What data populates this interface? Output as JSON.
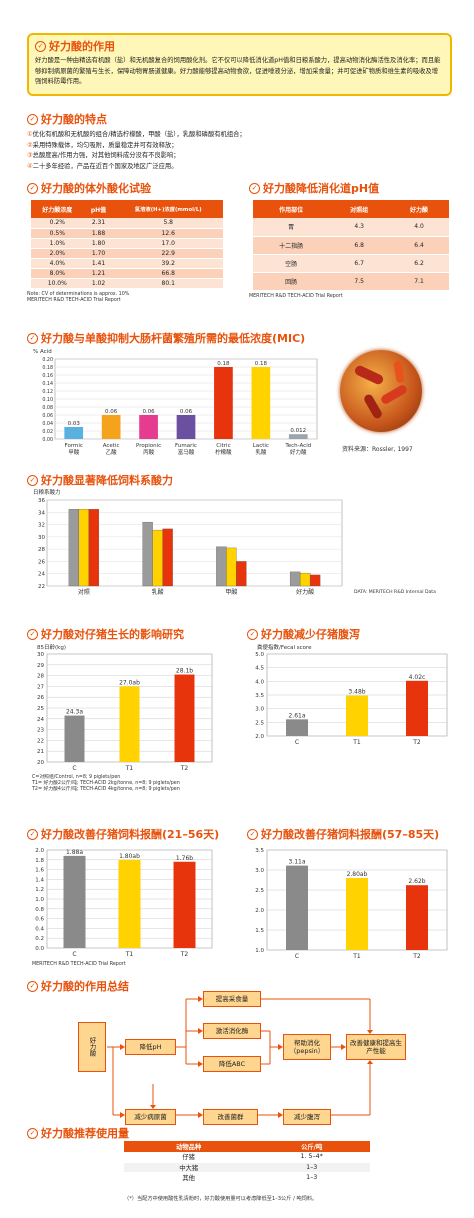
{
  "action": {
    "title": "好力酸的作用",
    "text": "好力酸是一种由精选有机酸（盐）和无机酸复合的饲用酸化剂。它不仅可以降低消化道pH值和日粮系酸力，提高动物消化酶活性及消化率；而且能够抑制病原菌的繁殖与生长，保障动物胃肠道健康。好力酸能够提高动物食欲，促进唾液分泌，增加采食量；并可促进矿物质和维生素的吸收及增强饲料防霉作用。"
  },
  "features": {
    "title": "好力酸的特点",
    "items": [
      "优化有机酸和无机酸的组合/精选柠檬酸，甲酸（盐），乳酸和磷酸有机组合；",
      "采用特殊载体，均匀吸附，质量稳定并可有效释放；",
      "总酸度高/作用力强，对其他饲料成分没有不良影响；",
      "二十多年经验，产品在近百个国家及地区广泛应用。"
    ]
  },
  "in_vitro": {
    "title": "好力酸的体外酸化试验",
    "headers": [
      "好力酸浓度",
      "pH值",
      "氢溶液(H+)浓度(mmol/L)"
    ],
    "rows": [
      [
        "0.2%",
        "2.31",
        "5.8"
      ],
      [
        "0.5%",
        "1.88",
        "12.6"
      ],
      [
        "1.0%",
        "1.80",
        "17.0"
      ],
      [
        "2.0%",
        "1.70",
        "22.9"
      ],
      [
        "4.0%",
        "1.41",
        "39.2"
      ],
      [
        "8.0%",
        "1.21",
        "66.8"
      ],
      [
        "10.0%",
        "1.02",
        "80.1"
      ]
    ],
    "note1": "Note: CV of determinations is approx. 10%",
    "note2": "MERITECH R&D TECH-ACID Trial Report"
  },
  "gut_ph": {
    "title": "好力酸降低消化道pH值",
    "headers": [
      "作用部位",
      "对照组",
      "好力酸"
    ],
    "rows": [
      [
        "胃",
        "4.3",
        "4.0"
      ],
      [
        "十二指肠",
        "6.8",
        "6.4"
      ],
      [
        "空肠",
        "6.7",
        "6.2"
      ],
      [
        "回肠",
        "7.5",
        "7.1"
      ]
    ],
    "note": "MERITECH R&D TECH-ACID Trial Report"
  },
  "mic": {
    "title": "好力酸与单酸抑制大肠杆菌繁殖所需的最低浓度(MIC)",
    "source": "资料来源：Rossler, 1997",
    "chart_data": {
      "type": "bar",
      "ylabel": "% Acid",
      "ylim": [
        0,
        0.2
      ],
      "categories": [
        "Formic\n甲酸",
        "Acetic\n乙酸",
        "Propionic\n丙酸",
        "Fumaric\n富马酸",
        "Citric\n柠檬酸",
        "Lactic\n乳酸",
        "Tech-Acid\n好力酸"
      ],
      "values": [
        0.03,
        0.06,
        0.06,
        0.06,
        0.18,
        0.18,
        0.012
      ],
      "colors": [
        "#5ab0de",
        "#f5a21d",
        "#e63c8f",
        "#6b4fa0",
        "#e8340c",
        "#ffd200",
        "#9aa5ad"
      ]
    }
  },
  "binding": {
    "title": "好力酸显著降低饲料系酸力",
    "source": "DATA: MERITECH R&D Internal Data",
    "chart_data": {
      "type": "bar",
      "ylabel": "日粮系酸力",
      "ylim": [
        22,
        36
      ],
      "yticks": [
        22,
        24,
        26,
        28,
        30,
        32,
        34,
        36
      ],
      "categories": [
        "对照",
        "乳酸",
        "甲酸",
        "好力酸"
      ],
      "series": [
        {
          "values": [
            34.5,
            32.4,
            28.4,
            24.3
          ],
          "color": "#9b9b9b"
        },
        {
          "values": [
            34.5,
            31.1,
            28.2,
            24.1
          ],
          "color": "#ffd200"
        },
        {
          "values": [
            34.5,
            31.3,
            26.0,
            23.8
          ],
          "color": "#e8340c"
        }
      ]
    }
  },
  "growth": {
    "title": "好力酸对仔猪生长的影响研究",
    "notes": [
      "C=对照组/Control, n=8; 9 piglets/pen",
      "T1= 好力酸2公斤/吨; TECH-ACID 2kg/tonne, n=8; 9 piglets/pen",
      "T2= 好力酸4公斤/吨; TECH-ACID 4kg/tonne, n=8; 9 piglets/pen"
    ],
    "chart_data": {
      "type": "bar",
      "ylabel": "85日龄(kg)",
      "ylim": [
        20,
        30
      ],
      "yticks": [
        20,
        21,
        22,
        23,
        24,
        25,
        26,
        27,
        28,
        29,
        30
      ],
      "categories": [
        "C",
        "T1",
        "T2"
      ],
      "values": [
        24.3,
        27.0,
        28.1
      ],
      "labels": [
        "24.3a",
        "27.0ab",
        "28.1b"
      ],
      "colors": [
        "#8a8a8a",
        "#ffd200",
        "#e8340c"
      ]
    }
  },
  "diarrhea": {
    "title": "好力酸减少仔猪腹泻",
    "chart_data": {
      "type": "bar",
      "ylabel": "粪便指数/Fecal score",
      "ylim": [
        2.0,
        5.0
      ],
      "yticks": [
        2.0,
        2.5,
        3.0,
        3.5,
        4.0,
        4.5,
        5.0
      ],
      "categories": [
        "C",
        "T1",
        "T2"
      ],
      "values": [
        2.61,
        3.48,
        4.02
      ],
      "labels": [
        "2.61a",
        "3.48b",
        "4.02c"
      ],
      "colors": [
        "#8a8a8a",
        "#ffd200",
        "#e8340c"
      ]
    }
  },
  "fcr1": {
    "title": "好力酸改善仔猪饲料报酬(21–56天)",
    "note": "MERITECH R&D TECH-ACID Trial Report",
    "chart_data": {
      "type": "bar",
      "ylim": [
        0,
        2.0
      ],
      "yticks": [
        0,
        0.2,
        0.4,
        0.6,
        0.8,
        1.0,
        1.2,
        1.4,
        1.6,
        1.8,
        2.0
      ],
      "categories": [
        "C",
        "T1",
        "T2"
      ],
      "values": [
        1.88,
        1.8,
        1.76
      ],
      "labels": [
        "1.88a",
        "1.80ab",
        "1.76b"
      ],
      "colors": [
        "#8a8a8a",
        "#ffd200",
        "#e8340c"
      ]
    }
  },
  "fcr2": {
    "title": "好力酸改善仔猪饲料报酬(57–85天)",
    "chart_data": {
      "type": "bar",
      "ylim": [
        1.0,
        3.5
      ],
      "yticks": [
        1.0,
        1.5,
        2.0,
        2.5,
        3.0,
        3.5
      ],
      "categories": [
        "C",
        "T1",
        "T2"
      ],
      "values": [
        3.11,
        2.8,
        2.62
      ],
      "labels": [
        "3.11a",
        "2.80ab",
        "2.62b"
      ],
      "colors": [
        "#8a8a8a",
        "#ffd200",
        "#e8340c"
      ]
    }
  },
  "summary": {
    "title": "好力酸的作用总结",
    "nodes": {
      "start": "好力酸",
      "ph": "降低pH",
      "feed": "提高采食量",
      "enzyme": "激活消化酶",
      "abc": "降低ABC",
      "digest": "帮助消化（pepsin）",
      "health": "改善健康和提高生产性能",
      "pathogen": "减少病原菌",
      "flora": "改善菌群",
      "diarrhea": "减少腹泻"
    }
  },
  "dosage": {
    "title": "好力酸推荐使用量",
    "headers": [
      "动物品种",
      "公斤/吨"
    ],
    "rows": [
      [
        "仔猪",
        "1. 5–4*"
      ],
      [
        "中大猪",
        "1–3"
      ],
      [
        "其他",
        "1–3"
      ]
    ],
    "footnote": "（*）当配方中使用酸性乳清粉时，好力酸使用量可以考虑降低至1–3公斤 / 吨饲料。"
  },
  "colors": {
    "accent": "#e8520c",
    "yellow": "#ffd200",
    "red": "#e8340c",
    "gray": "#8a8a8a",
    "box": "#fff7b8"
  }
}
